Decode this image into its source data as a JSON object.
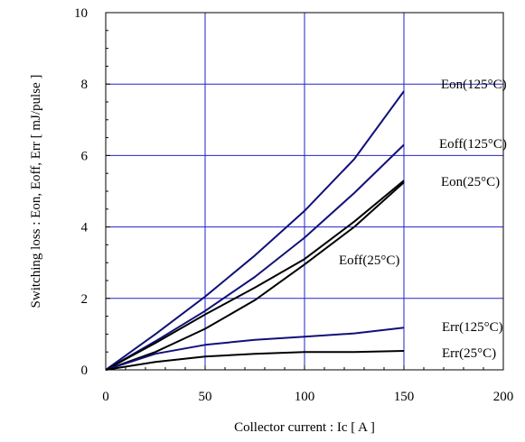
{
  "chart_data": {
    "type": "line",
    "title": "",
    "xlabel": "Collector current : Ic [ A ]",
    "ylabel": "Switching loss : Eon, Eoff, Err [ mJ/pulse ]",
    "xlim": [
      0,
      200
    ],
    "ylim": [
      0,
      10
    ],
    "x_ticks": [
      0,
      50,
      100,
      150,
      200
    ],
    "y_ticks": [
      0,
      2,
      4,
      6,
      8,
      10
    ],
    "grid": true,
    "colors": {
      "grid": "#2222cc",
      "hot": "#10107a",
      "cold": "#000000"
    },
    "series": [
      {
        "name": "Eon(125°C)",
        "color": "#10107a",
        "x": [
          0,
          25,
          50,
          75,
          100,
          125,
          150
        ],
        "y": [
          0,
          1.0,
          2.05,
          3.2,
          4.45,
          5.9,
          7.8
        ]
      },
      {
        "name": "Eoff(125°C)",
        "color": "#10107a",
        "x": [
          0,
          25,
          50,
          75,
          100,
          125,
          150
        ],
        "y": [
          0,
          0.8,
          1.65,
          2.6,
          3.7,
          4.95,
          6.3
        ]
      },
      {
        "name": "Eon(25°C)",
        "color": "#000000",
        "x": [
          0,
          25,
          50,
          75,
          100,
          125,
          150
        ],
        "y": [
          0,
          0.5,
          1.15,
          1.95,
          2.95,
          4.0,
          5.25
        ]
      },
      {
        "name": "Eoff(25°C)",
        "color": "#000000",
        "x": [
          0,
          25,
          50,
          75,
          100,
          125,
          150
        ],
        "y": [
          0,
          0.75,
          1.55,
          2.3,
          3.1,
          4.15,
          5.3
        ]
      },
      {
        "name": "Err(125°C)",
        "color": "#10107a",
        "x": [
          0,
          25,
          50,
          75,
          100,
          125,
          150
        ],
        "y": [
          0,
          0.45,
          0.7,
          0.84,
          0.93,
          1.02,
          1.18
        ]
      },
      {
        "name": "Err(25°C)",
        "color": "#000000",
        "x": [
          0,
          25,
          50,
          75,
          100,
          125,
          150
        ],
        "y": [
          0,
          0.22,
          0.37,
          0.45,
          0.5,
          0.5,
          0.53
        ]
      }
    ]
  }
}
